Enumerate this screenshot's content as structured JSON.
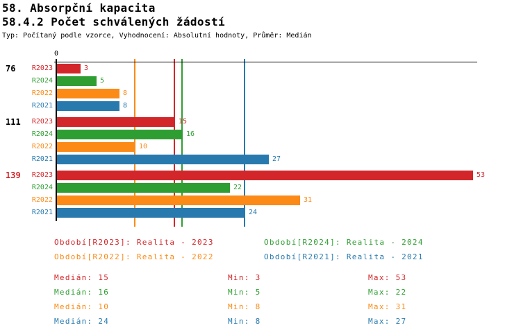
{
  "header": {
    "title": "58. Absorpční kapacita",
    "subtitle": "58.4.2 Počet schválených žádostí",
    "meta": "Typ: Počítaný podle vzorce, Vyhodnocení: Absolutní hodnoty, Průměr: Medián"
  },
  "chart_data": {
    "type": "bar",
    "orientation": "horizontal",
    "origin_tick_label": "0",
    "xlim": [
      0,
      53.6
    ],
    "grid": "off",
    "series": [
      {
        "name": "R2023",
        "color": "#d2262a",
        "legend": "Období[R2023]: Realita - 2023",
        "median": 15,
        "min": 3,
        "max": 53
      },
      {
        "name": "R2024",
        "color": "#2f9e32",
        "legend": "Období[R2024]: Realita - 2024",
        "median": 16,
        "min": 5,
        "max": 22
      },
      {
        "name": "R2022",
        "color": "#fb8a16",
        "legend": "Období[R2022]: Realita - 2022",
        "median": 10,
        "min": 8,
        "max": 31
      },
      {
        "name": "R2021",
        "color": "#2779ae",
        "legend": "Období[R2021]: Realita - 2021",
        "median": 24,
        "min": 8,
        "max": 27
      }
    ],
    "groups": [
      {
        "label": "76",
        "label_color": "#000000",
        "values": [
          3,
          5,
          8,
          8
        ]
      },
      {
        "label": "111",
        "label_color": "#000000",
        "values": [
          15,
          16,
          10,
          27
        ]
      },
      {
        "label": "139",
        "label_color": "#d2262a",
        "values": [
          53,
          22,
          31,
          24
        ]
      }
    ],
    "median_lines_shown": true,
    "legend_position": "bottom-two-columns",
    "stats_labels": {
      "median": "Medián:",
      "min": "Min:",
      "max": "Max:"
    }
  }
}
